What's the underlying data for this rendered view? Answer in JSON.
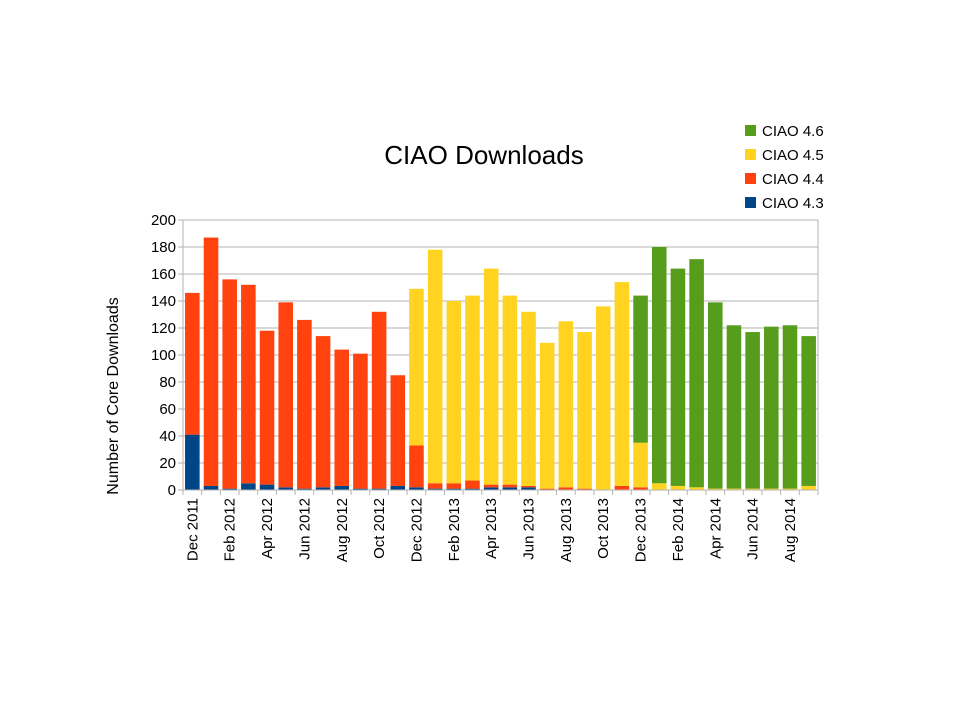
{
  "chart_data": {
    "type": "bar",
    "stacked": true,
    "title": "CIAO Downloads",
    "xlabel": "",
    "ylabel": "Number of Core Downloads",
    "ylim": [
      0,
      200
    ],
    "ytick_step": 20,
    "grid": true,
    "legend_position": "top-right",
    "categories": [
      "Dec 2011",
      "Jan 2012",
      "Feb 2012",
      "Mar 2012",
      "Apr 2012",
      "May 2012",
      "Jun 2012",
      "Jul 2012",
      "Aug 2012",
      "Sep 2012",
      "Oct 2012",
      "Nov 2012",
      "Dec 2012",
      "Jan 2013",
      "Feb 2013",
      "Mar 2013",
      "Apr 2013",
      "May 2013",
      "Jun 2013",
      "Jul 2013",
      "Aug 2013",
      "Sep 2013",
      "Oct 2013",
      "Nov 2013",
      "Dec 2013",
      "Jan 2014",
      "Feb 2014",
      "Mar 2014",
      "Apr 2014",
      "May 2014",
      "Jun 2014",
      "Jul 2014",
      "Aug 2014",
      "Sep 2014"
    ],
    "tick_labels": [
      "Dec 2011",
      "",
      "Feb 2012",
      "",
      "Apr 2012",
      "",
      "Jun 2012",
      "",
      "Aug 2012",
      "",
      "Oct 2012",
      "",
      "Dec 2012",
      "",
      "Feb 2013",
      "",
      "Apr 2013",
      "",
      "Jun 2013",
      "",
      "Aug 2013",
      "",
      "Oct 2013",
      "",
      "Dec 2013",
      "",
      "Feb 2014",
      "",
      "Apr 2014",
      "",
      "Jun 2014",
      "",
      "Aug 2014",
      ""
    ],
    "series": [
      {
        "name": "CIAO 4.3",
        "color": "#004586",
        "values": [
          41,
          3,
          1,
          5,
          4,
          2,
          1,
          2,
          3,
          1,
          1,
          3,
          2,
          1,
          1,
          1,
          2,
          2,
          2,
          0,
          0,
          0,
          0,
          0,
          0,
          0,
          0,
          0,
          0,
          0,
          0,
          0,
          0,
          0
        ]
      },
      {
        "name": "CIAO 4.4",
        "color": "#ff420e",
        "values": [
          105,
          184,
          155,
          147,
          114,
          137,
          125,
          112,
          101,
          100,
          131,
          82,
          31,
          4,
          4,
          6,
          2,
          2,
          1,
          1,
          2,
          1,
          0,
          3,
          2,
          0,
          0,
          0,
          0,
          0,
          0,
          0,
          0,
          0
        ]
      },
      {
        "name": "CIAO 4.5",
        "color": "#ffd320",
        "values": [
          0,
          0,
          0,
          0,
          0,
          0,
          0,
          0,
          0,
          0,
          0,
          0,
          116,
          173,
          135,
          137,
          160,
          140,
          129,
          108,
          123,
          116,
          136,
          151,
          33,
          5,
          3,
          2,
          1,
          1,
          1,
          1,
          1,
          3
        ]
      },
      {
        "name": "CIAO 4.6",
        "color": "#579d1c",
        "values": [
          0,
          0,
          0,
          0,
          0,
          0,
          0,
          0,
          0,
          0,
          0,
          0,
          0,
          0,
          0,
          0,
          0,
          0,
          0,
          0,
          0,
          0,
          0,
          0,
          109,
          175,
          161,
          169,
          138,
          121,
          116,
          120,
          121,
          111
        ]
      }
    ],
    "legend_order": [
      "CIAO 4.6",
      "CIAO 4.5",
      "CIAO 4.4",
      "CIAO 4.3"
    ]
  }
}
